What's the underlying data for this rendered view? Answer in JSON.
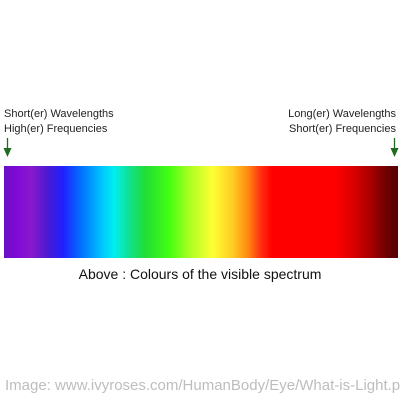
{
  "left_label": {
    "line1": "Short(er) Wavelengths",
    "line2": "High(er) Frequencies"
  },
  "right_label": {
    "line1": "Long(er) Wavelengths",
    "line2": "Short(er) Frequencies"
  },
  "arrow_color": "#1f6b1f",
  "caption": "Above : Colours of the visible spectrum",
  "watermark": "Image: www.ivyroses.com/HumanBody/Eye/What-is-Light.php",
  "icons": {
    "left_arrow": "down-arrow-icon",
    "right_arrow": "down-arrow-icon"
  }
}
